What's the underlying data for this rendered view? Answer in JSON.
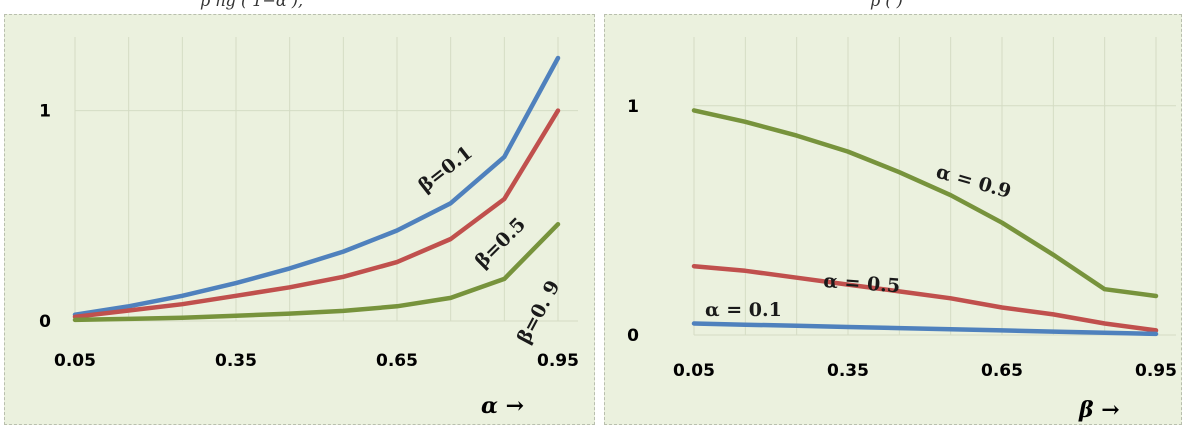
{
  "header": {
    "left_fragment": "p  ng (   1−α   ),",
    "right_fragment": "p  (  )"
  },
  "chart_data": [
    {
      "type": "line",
      "x": [
        0.05,
        0.15,
        0.25,
        0.35,
        0.45,
        0.55,
        0.65,
        0.75,
        0.85,
        0.95
      ],
      "xticks": [
        "0.05",
        "0.35",
        "0.65",
        "0.95"
      ],
      "yticks": [
        "0",
        "1"
      ],
      "xlabel": "α →",
      "ylabel": "",
      "xlim": [
        0.05,
        0.95
      ],
      "ylim": [
        0,
        1.35
      ],
      "grid": true,
      "series": [
        {
          "name": "β=0.1",
          "color": "#4f81bd",
          "values": [
            0.03,
            0.07,
            0.12,
            0.18,
            0.25,
            0.33,
            0.43,
            0.56,
            0.78,
            1.25
          ]
        },
        {
          "name": "β=0.5",
          "color": "#c0504d",
          "values": [
            0.02,
            0.05,
            0.08,
            0.12,
            0.16,
            0.21,
            0.28,
            0.39,
            0.58,
            1.0
          ]
        },
        {
          "name": "β=0. 9",
          "color": "#77933c",
          "values": [
            0.005,
            0.01,
            0.015,
            0.025,
            0.035,
            0.048,
            0.07,
            0.11,
            0.2,
            0.46
          ]
        }
      ]
    },
    {
      "type": "line",
      "x": [
        0.05,
        0.15,
        0.25,
        0.35,
        0.45,
        0.55,
        0.65,
        0.75,
        0.85,
        0.95
      ],
      "xticks": [
        "0.05",
        "0.35",
        "0.65",
        "0.95"
      ],
      "yticks": [
        "0",
        "1"
      ],
      "xlabel": "β →",
      "ylabel": "",
      "xlim": [
        0.05,
        0.95
      ],
      "ylim": [
        0,
        1.3
      ],
      "grid": true,
      "series": [
        {
          "name": "α = 0.9",
          "color": "#77933c",
          "values": [
            0.98,
            0.93,
            0.87,
            0.8,
            0.71,
            0.61,
            0.49,
            0.35,
            0.2,
            0.17
          ]
        },
        {
          "name": "α = 0.5",
          "color": "#c0504d",
          "values": [
            0.3,
            0.28,
            0.25,
            0.22,
            0.19,
            0.16,
            0.12,
            0.09,
            0.05,
            0.02
          ]
        },
        {
          "name": "α = 0.1",
          "color": "#4f81bd",
          "values": [
            0.05,
            0.045,
            0.04,
            0.035,
            0.03,
            0.025,
            0.02,
            0.015,
            0.01,
            0.005
          ]
        }
      ]
    }
  ]
}
